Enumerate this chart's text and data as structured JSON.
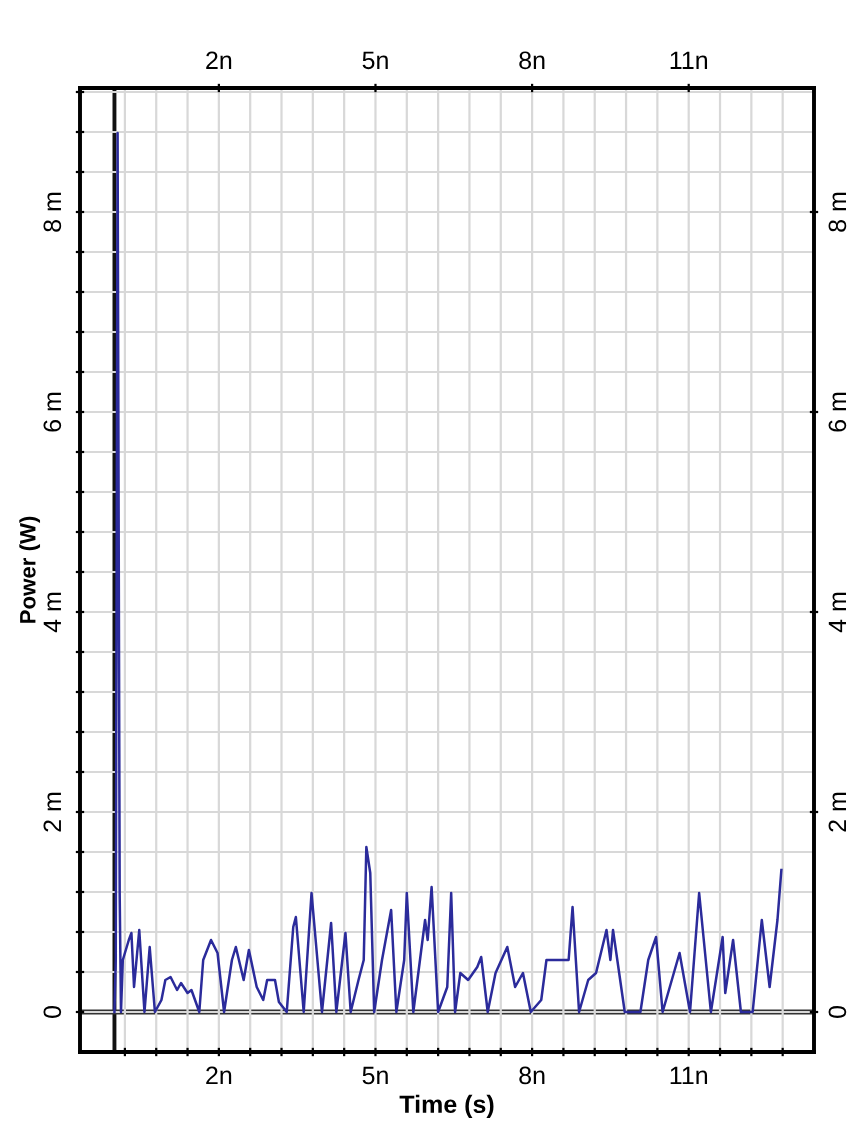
{
  "chart_data": {
    "type": "line",
    "xlabel": "Time (s)",
    "ylabel": "Power (W)",
    "series": [
      {
        "color": "#2b2b9b",
        "x": [
          0,
          0.025,
          0.06,
          0.1,
          0.125,
          0.16,
          0.275,
          0.325,
          0.375,
          0.475,
          0.575,
          0.675,
          0.775,
          0.9,
          0.975,
          1.075,
          1.2,
          1.275,
          1.4,
          1.475,
          1.625,
          1.7,
          1.85,
          1.975,
          2.1,
          2.25,
          2.325,
          2.475,
          2.575,
          2.725,
          2.85,
          2.925,
          3.075,
          3.15,
          3.3,
          3.425,
          3.475,
          3.625,
          3.775,
          3.975,
          4.15,
          4.25,
          4.425,
          4.525,
          4.675,
          4.775,
          4.825,
          4.9,
          4.975,
          5.125,
          5.3,
          5.4,
          5.55,
          5.6,
          5.725,
          5.95,
          6.0,
          6.075,
          6.2,
          6.375,
          6.45,
          6.525,
          6.625,
          6.775,
          6.95,
          7.025,
          7.15,
          7.3,
          7.525,
          7.675,
          7.825,
          7.975,
          8.175,
          8.275,
          8.45,
          8.7,
          8.775,
          8.9,
          9.075,
          9.225,
          9.425,
          9.5,
          9.55,
          9.775,
          10.075,
          10.225,
          10.375,
          10.5,
          10.825,
          11.025,
          11.2,
          11.425,
          11.65,
          11.7,
          11.85,
          12.0,
          12.225,
          12.4,
          12.55,
          12.7,
          12.775
        ],
        "values": [
          0,
          0.52,
          8.79,
          1.19,
          0,
          0.52,
          0.72,
          0.79,
          0.25,
          0.82,
          0,
          0.65,
          0,
          0.12,
          0.32,
          0.35,
          0.22,
          0.29,
          0.19,
          0.22,
          0,
          0.52,
          0.72,
          0.59,
          0,
          0.52,
          0.65,
          0.32,
          0.62,
          0.25,
          0.12,
          0.32,
          0.32,
          0.1,
          0,
          0.85,
          0.95,
          0,
          1.19,
          0,
          0.89,
          0,
          0.79,
          0,
          0.32,
          0.52,
          1.65,
          1.39,
          0,
          0.52,
          1.02,
          0,
          0.52,
          1.19,
          0,
          0.92,
          0.72,
          1.25,
          0,
          0.25,
          1.19,
          0,
          0.39,
          0.32,
          0.45,
          0.55,
          0,
          0.39,
          0.65,
          0.25,
          0.39,
          0,
          0.12,
          0.52,
          0.52,
          0.52,
          1.05,
          0,
          0.32,
          0.39,
          0.82,
          0.52,
          0.82,
          0,
          0,
          0.52,
          0.75,
          0,
          0.59,
          0,
          1.19,
          0,
          0.75,
          0.19,
          0.72,
          0,
          0,
          0.92,
          0.25,
          0.92,
          1.42
        ]
      }
    ],
    "xlim": [
      -0.66,
      13.4
    ],
    "xticks": [
      {
        "value": 0.2,
        "label": null
      },
      {
        "value": 0.8,
        "label": null
      },
      {
        "value": 1.4,
        "label": null
      },
      {
        "value": 2,
        "label": "2n"
      },
      {
        "value": 2.6,
        "label": null
      },
      {
        "value": 3.2,
        "label": null
      },
      {
        "value": 3.8,
        "label": null
      },
      {
        "value": 4.4,
        "label": null
      },
      {
        "value": 5,
        "label": "5n"
      },
      {
        "value": 5.6,
        "label": null
      },
      {
        "value": 6.2,
        "label": null
      },
      {
        "value": 6.8,
        "label": null
      },
      {
        "value": 7.4,
        "label": null
      },
      {
        "value": 8,
        "label": "8n"
      },
      {
        "value": 8.6,
        "label": null
      },
      {
        "value": 9.2,
        "label": null
      },
      {
        "value": 9.8,
        "label": null
      },
      {
        "value": 10.4,
        "label": null
      },
      {
        "value": 11,
        "label": "11n"
      },
      {
        "value": 11.6,
        "label": null
      },
      {
        "value": 12.2,
        "label": null
      },
      {
        "value": 12.8,
        "label": null
      }
    ],
    "x2lim": [
      -0.66,
      13.4
    ],
    "x2ticks": [
      {
        "value": 2,
        "label": "2n"
      },
      {
        "value": 5,
        "label": "5n"
      },
      {
        "value": 8,
        "label": "8n"
      },
      {
        "value": 11,
        "label": "11n"
      }
    ],
    "ylim": [
      -0.4,
      9.24
    ],
    "yticks": [
      0,
      {
        "value": 0.4,
        "label": null
      },
      {
        "value": 0.8,
        "label": null
      },
      {
        "value": 1.2,
        "label": null
      },
      {
        "value": 1.6,
        "label": null
      },
      {
        "value": 2,
        "label": "2 m"
      },
      {
        "value": 2.4,
        "label": null
      },
      {
        "value": 2.8,
        "label": null
      },
      {
        "value": 3.2,
        "label": null
      },
      {
        "value": 3.6,
        "label": null
      },
      {
        "value": 4,
        "label": "4 m"
      },
      {
        "value": 4.4,
        "label": null
      },
      {
        "value": 4.8,
        "label": null
      },
      {
        "value": 5.2,
        "label": null
      },
      {
        "value": 5.6,
        "label": null
      },
      {
        "value": 6,
        "label": "6 m"
      },
      {
        "value": 6.4,
        "label": null
      },
      {
        "value": 6.8,
        "label": null
      },
      {
        "value": 7.2,
        "label": null
      },
      {
        "value": 7.6,
        "label": null
      },
      {
        "value": 8,
        "label": "8 m"
      },
      {
        "value": 8.4,
        "label": null
      },
      {
        "value": 8.8,
        "label": null
      },
      {
        "value": 9.2,
        "label": null
      }
    ],
    "y2lim": [
      -0.4,
      9.24
    ],
    "y2ticks": [
      0,
      {
        "value": 2,
        "label": "2 m"
      },
      {
        "value": 4,
        "label": "4 m"
      },
      {
        "value": 6,
        "label": "6 m"
      },
      {
        "value": 8,
        "label": "8 m"
      }
    ],
    "ref_lines": [
      {
        "axis": "x",
        "value": 0,
        "color": "#111111"
      },
      {
        "axis": "y",
        "value": 0,
        "color": "#333333"
      }
    ],
    "grid": true,
    "legend": false,
    "marker": "none",
    "line_style": "solid"
  }
}
